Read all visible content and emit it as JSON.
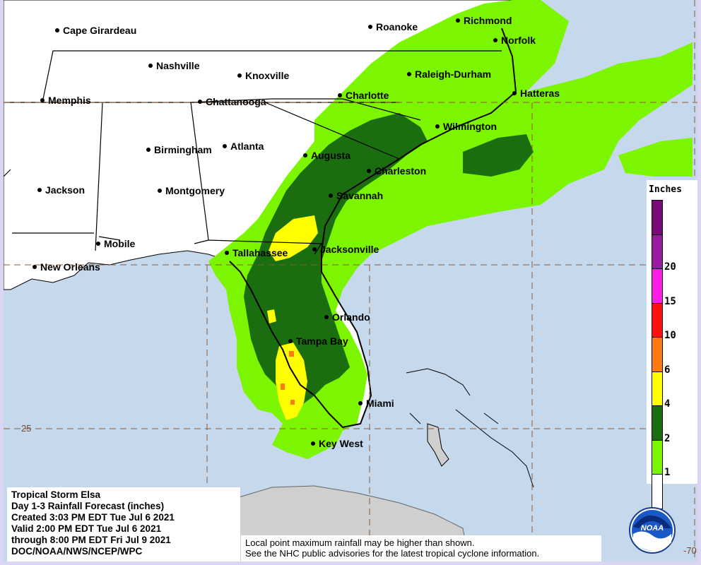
{
  "title_lines": {
    "storm": "Tropical Storm Elsa",
    "product": "Day 1-3 Rainfall Forecast (inches)",
    "created": "Created 3:03 PM EDT Tue Jul 6 2021",
    "valid": "Valid 2:00 PM EDT Tue Jul 6 2021",
    "through": "through 8:00 PM EDT Fri Jul 9 2021",
    "agency": "DOC/NOAA/NWS/NCEP/WPC"
  },
  "notes": {
    "line1": "Local point maximum rainfall may be higher than shown.",
    "line2": "See the NHC public advisories for the latest tropical cyclone information."
  },
  "legend": {
    "title": "Inches",
    "bins": [
      {
        "label": "",
        "color": "#7a0a78"
      },
      {
        "label": "20",
        "color": "#9b1a9e"
      },
      {
        "label": "15",
        "color": "#ff1ee8"
      },
      {
        "label": "10",
        "color": "#ff1010"
      },
      {
        "label": "6",
        "color": "#ff7a12"
      },
      {
        "label": "4",
        "color": "#ffff00"
      },
      {
        "label": "2",
        "color": "#1b6e10"
      },
      {
        "label": "1",
        "color": "#7cf500"
      },
      {
        "label": "",
        "color": "#ffffff"
      }
    ]
  },
  "cities": [
    {
      "name": "Cape Girardeau",
      "key": "cape-girardeau"
    },
    {
      "name": "Roanoke",
      "key": "roanoke"
    },
    {
      "name": "Richmond",
      "key": "richmond"
    },
    {
      "name": "Norfolk",
      "key": "norfolk"
    },
    {
      "name": "Nashville",
      "key": "nashville"
    },
    {
      "name": "Knoxville",
      "key": "knoxville"
    },
    {
      "name": "Raleigh-Durham",
      "key": "raleigh-durham"
    },
    {
      "name": "Memphis",
      "key": "memphis"
    },
    {
      "name": "Chattanooga",
      "key": "chattanooga"
    },
    {
      "name": "Charlotte",
      "key": "charlotte"
    },
    {
      "name": "Hatteras",
      "key": "hatteras"
    },
    {
      "name": "Wilmington",
      "key": "wilmington"
    },
    {
      "name": "Birmingham",
      "key": "birmingham"
    },
    {
      "name": "Atlanta",
      "key": "atlanta"
    },
    {
      "name": "Augusta",
      "key": "augusta"
    },
    {
      "name": "Charleston",
      "key": "charleston"
    },
    {
      "name": "Jackson",
      "key": "jackson"
    },
    {
      "name": "Montgomery",
      "key": "montgomery"
    },
    {
      "name": "Savannah",
      "key": "savannah"
    },
    {
      "name": "Mobile",
      "key": "mobile"
    },
    {
      "name": "Tallahassee",
      "key": "tallahassee"
    },
    {
      "name": "Jacksonville",
      "key": "jacksonville"
    },
    {
      "name": "New Orleans",
      "key": "new-orleans"
    },
    {
      "name": "Orlando",
      "key": "orlando"
    },
    {
      "name": "Tampa Bay",
      "key": "tampa-bay"
    },
    {
      "name": "Miami",
      "key": "miami"
    },
    {
      "name": "Key West",
      "key": "key-west"
    }
  ],
  "grid_labels": {
    "lat_25": "25",
    "lon_70": "-70"
  },
  "logo_text": "NOAA",
  "colors": {
    "ocean": "#c6d8ec",
    "land": "#ffffff",
    "grid": "#8a5a3a"
  }
}
